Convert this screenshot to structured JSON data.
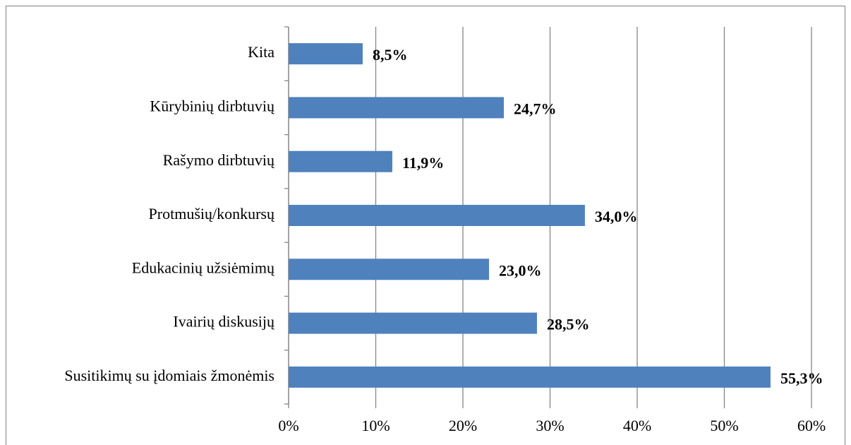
{
  "chart_data": {
    "type": "bar",
    "orientation": "horizontal",
    "categories": [
      "Kita",
      "Kūrybinių dirbtuvių",
      "Rašymo dirbtuvių",
      "Protmušių/konkursų",
      "Edukacinių užsiėmimų",
      "Ivairių diskusijų",
      "Susitikimų su įdomiais žmonėmis"
    ],
    "values": [
      8.5,
      24.7,
      11.9,
      34.0,
      23.0,
      28.5,
      55.3
    ],
    "value_labels": [
      "8,5%",
      "24,7%",
      "11,9%",
      "34,0%",
      "23,0%",
      "28,5%",
      "55,3%"
    ],
    "color": "#4f81bd",
    "xlim": [
      0,
      60
    ],
    "xticks": [
      {
        "value": 0,
        "label": "0%"
      },
      {
        "value": 10,
        "label": "10%"
      },
      {
        "value": 20,
        "label": "20%"
      },
      {
        "value": 30,
        "label": "30%"
      },
      {
        "value": 40,
        "label": "40%"
      },
      {
        "value": 50,
        "label": "50%"
      },
      {
        "value": 60,
        "label": "60%"
      }
    ],
    "grid": true
  }
}
